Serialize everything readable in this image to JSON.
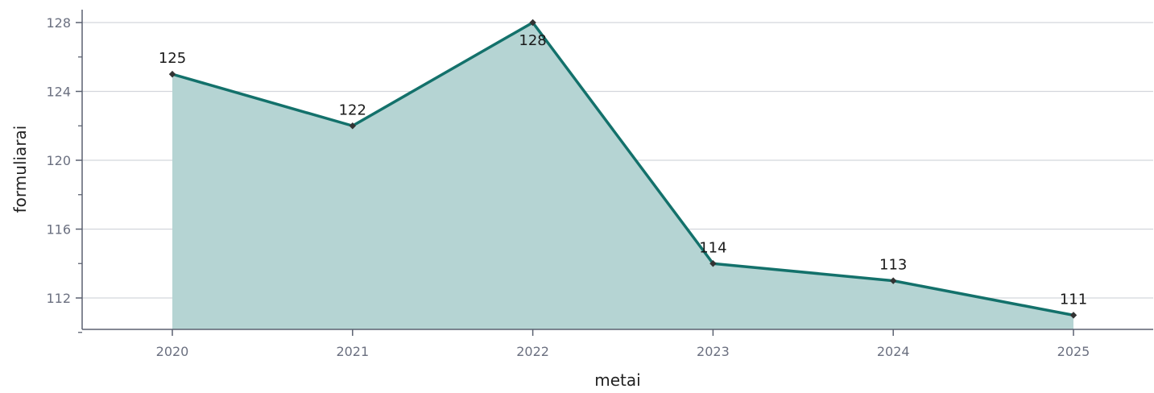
{
  "chart_data": {
    "type": "area",
    "x": [
      "2020",
      "2021",
      "2022",
      "2023",
      "2024",
      "2025"
    ],
    "series": [
      {
        "values": [
          125,
          122,
          128,
          114,
          113,
          111
        ]
      }
    ],
    "data_labels": [
      "125",
      "122",
      "128",
      "114",
      "113",
      "111"
    ],
    "xlabel": "metai",
    "ylabel": "formuliarai",
    "ylim": [
      109.2,
      129
    ],
    "y_ticks": [
      112,
      116,
      120,
      124,
      128
    ],
    "y_tick_labels": [
      "112",
      "116",
      "120",
      "124",
      "128"
    ],
    "y_minor_ticks": [
      110,
      114,
      118,
      122,
      126
    ],
    "x_tick_labels": [
      "2020",
      "2021",
      "2022",
      "2023",
      "2024",
      "2025"
    ],
    "grid": "horizontal",
    "legend": "none",
    "colors": {
      "line": "#13716b",
      "fill": "#b5d4d3",
      "marker": "#333333",
      "grid": "#d3d6dc",
      "axis": "#5b6170",
      "tick_text": "#6b7080"
    }
  }
}
